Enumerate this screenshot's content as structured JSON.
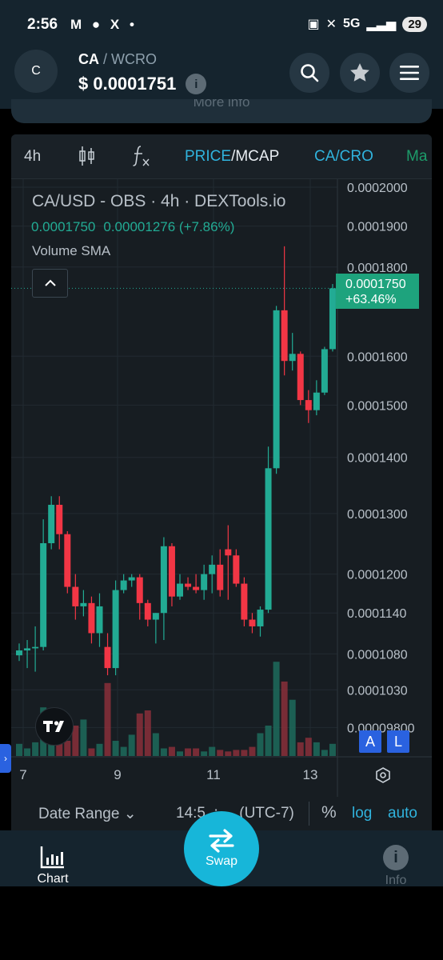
{
  "status_bar": {
    "time": "2:56",
    "left_icons": "M ● X •",
    "network": "5G",
    "battery": "29"
  },
  "header": {
    "avatar_letter": "C",
    "base": "CA",
    "separator": "/",
    "quote": "WCRO",
    "price": "$ 0.0001751",
    "info": "i"
  },
  "more_info_label": "More info",
  "toolbar": {
    "interval": "4h",
    "price_label": "PRICE",
    "slash": "/",
    "mcap_label": "MCAP",
    "pair_label": "CA/CRO",
    "max_label": "Ma"
  },
  "legend": {
    "title": "CA/USD - OBS · 4h · DEXTools.io",
    "last": "0.0001750",
    "change": "0.00001276 (+7.86%)",
    "volume": "Volume SMA"
  },
  "price_tag": {
    "value": "0.0001750",
    "change": "+63.46%"
  },
  "y_axis_labels": [
    "0.0002000",
    "0.0001900",
    "0.0001800",
    "0.0001600",
    "0.0001500",
    "0.0001400",
    "0.0001300",
    "0.0001200",
    "0.0001140",
    "0.0001080",
    "0.0001030",
    "0.00009800"
  ],
  "x_axis_labels": [
    "7",
    "9",
    "11",
    "13"
  ],
  "alert_buttons": [
    "A",
    "L"
  ],
  "range_bar": {
    "date_range": "Date Range",
    "time": "14:5_:__ (UTC-7)",
    "percent": "%",
    "log": "log",
    "auto": "auto"
  },
  "bottom_nav": {
    "chart": "Chart",
    "swap": "Swap",
    "info": "Info"
  },
  "colors": {
    "up": "#22ab94",
    "down": "#f23645",
    "accent": "#17b6d9"
  },
  "chart_data": {
    "type": "candlestick",
    "title": "CA/USD - OBS · 4h · DEXTools.io",
    "y_scale": "log",
    "ylim": [
      9.65e-05,
      0.0002
    ],
    "x_ticks": [
      "7",
      "9",
      "11",
      "13"
    ],
    "candles": [
      {
        "o": 0.0001078,
        "h": 0.0001095,
        "l": 0.000107,
        "c": 0.0001085
      },
      {
        "o": 0.0001085,
        "h": 0.00011,
        "l": 0.000106,
        "c": 0.0001088
      },
      {
        "o": 0.0001088,
        "h": 0.000112,
        "l": 0.0001055,
        "c": 0.000109
      },
      {
        "o": 0.000109,
        "h": 0.000129,
        "l": 0.0001085,
        "c": 0.000125
      },
      {
        "o": 0.000125,
        "h": 0.000133,
        "l": 0.000124,
        "c": 0.0001315
      },
      {
        "o": 0.0001315,
        "h": 0.000133,
        "l": 0.000124,
        "c": 0.0001265
      },
      {
        "o": 0.0001265,
        "h": 0.000127,
        "l": 0.000117,
        "c": 0.000118
      },
      {
        "o": 0.000118,
        "h": 0.00012,
        "l": 0.000113,
        "c": 0.000115
      },
      {
        "o": 0.000115,
        "h": 0.0001175,
        "l": 0.0001135,
        "c": 0.0001155
      },
      {
        "o": 0.0001155,
        "h": 0.0001165,
        "l": 0.0001095,
        "c": 0.000111
      },
      {
        "o": 0.000111,
        "h": 0.000117,
        "l": 0.000109,
        "c": 0.000115
      },
      {
        "o": 0.000109,
        "h": 0.000111,
        "l": 0.000105,
        "c": 0.000106
      },
      {
        "o": 0.000106,
        "h": 0.000119,
        "l": 0.000105,
        "c": 0.0001175
      },
      {
        "o": 0.0001175,
        "h": 0.00012,
        "l": 0.000117,
        "c": 0.000119
      },
      {
        "o": 0.000119,
        "h": 0.00012,
        "l": 0.000118,
        "c": 0.0001195
      },
      {
        "o": 0.0001195,
        "h": 0.00012,
        "l": 0.000113,
        "c": 0.0001155
      },
      {
        "o": 0.0001155,
        "h": 0.000116,
        "l": 0.000112,
        "c": 0.000113
      },
      {
        "o": 0.000113,
        "h": 0.000114,
        "l": 0.0001095,
        "c": 0.000114
      },
      {
        "o": 0.000114,
        "h": 0.000126,
        "l": 0.00011,
        "c": 0.0001245
      },
      {
        "o": 0.0001245,
        "h": 0.000125,
        "l": 0.000115,
        "c": 0.0001165
      },
      {
        "o": 0.0001165,
        "h": 0.00012,
        "l": 0.000116,
        "c": 0.0001185
      },
      {
        "o": 0.0001185,
        "h": 0.0001195,
        "l": 0.0001175,
        "c": 0.000118
      },
      {
        "o": 0.000118,
        "h": 0.00012,
        "l": 0.000117,
        "c": 0.0001175
      },
      {
        "o": 0.0001175,
        "h": 0.0001215,
        "l": 0.000116,
        "c": 0.00012
      },
      {
        "o": 0.00012,
        "h": 0.000123,
        "l": 0.000117,
        "c": 0.0001215
      },
      {
        "o": 0.0001215,
        "h": 0.000124,
        "l": 0.0001165,
        "c": 0.0001175
      },
      {
        "o": 0.000124,
        "h": 0.000128,
        "l": 0.000116,
        "c": 0.000123
      },
      {
        "o": 0.000123,
        "h": 0.000124,
        "l": 0.000118,
        "c": 0.0001185
      },
      {
        "o": 0.0001185,
        "h": 0.0001195,
        "l": 0.000112,
        "c": 0.000113
      },
      {
        "o": 0.000113,
        "h": 0.000114,
        "l": 0.000111,
        "c": 0.000112
      },
      {
        "o": 0.000112,
        "h": 0.000115,
        "l": 0.0001105,
        "c": 0.0001145
      },
      {
        "o": 0.0001145,
        "h": 0.000142,
        "l": 0.000114,
        "c": 0.000138
      },
      {
        "o": 0.000138,
        "h": 0.000171,
        "l": 0.000137,
        "c": 0.00017
      },
      {
        "o": 0.00017,
        "h": 0.000185,
        "l": 0.000156,
        "c": 0.000159
      },
      {
        "o": 0.000159,
        "h": 0.000165,
        "l": 0.000157,
        "c": 0.0001605
      },
      {
        "o": 0.0001605,
        "h": 0.000161,
        "l": 0.00015,
        "c": 0.000151
      },
      {
        "o": 0.000151,
        "h": 0.000153,
        "l": 0.0001465,
        "c": 0.000149
      },
      {
        "o": 0.000149,
        "h": 0.000155,
        "l": 0.000148,
        "c": 0.0001525
      },
      {
        "o": 0.0001525,
        "h": 0.000162,
        "l": 0.000152,
        "c": 0.0001615
      },
      {
        "o": 0.0001615,
        "h": 0.000176,
        "l": 0.000161,
        "c": 0.000175
      }
    ],
    "volume": [
      0.08,
      0.05,
      0.09,
      0.32,
      0.2,
      0.28,
      0.1,
      0.2,
      0.24,
      0.05,
      0.08,
      0.48,
      0.1,
      0.06,
      0.14,
      0.28,
      0.3,
      0.15,
      0.05,
      0.06,
      0.03,
      0.05,
      0.05,
      0.03,
      0.06,
      0.04,
      0.03,
      0.04,
      0.04,
      0.06,
      0.15,
      0.2,
      0.62,
      0.49,
      0.37,
      0.09,
      0.12,
      0.09,
      0.04,
      0.08
    ]
  }
}
